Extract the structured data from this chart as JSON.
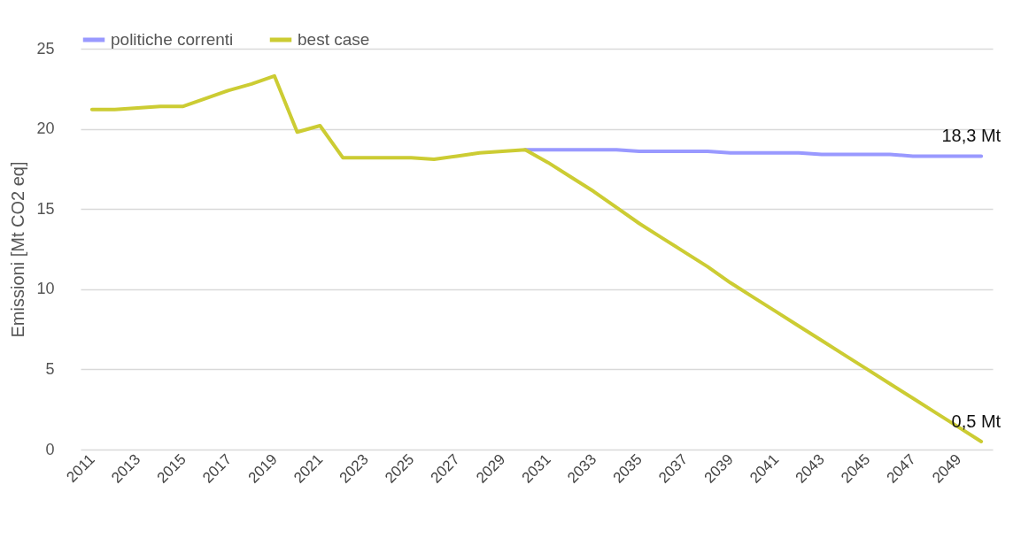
{
  "chart_data": {
    "type": "line",
    "ylabel": "Emissioni [Mt CO2 eq]",
    "categories": [
      "2011",
      null,
      "2013",
      null,
      "2015",
      null,
      "2017",
      null,
      "2019",
      null,
      "2021",
      null,
      "2023",
      null,
      "2025",
      null,
      "2027",
      null,
      "2029",
      null,
      "2031",
      null,
      "2033",
      null,
      "2035",
      null,
      "2037",
      null,
      "2039",
      null,
      "2041",
      null,
      "2043",
      null,
      "2045",
      null,
      "2047",
      null,
      "2049",
      null
    ],
    "series": [
      {
        "name": "politiche correnti",
        "color": "#9999ff",
        "values": [
          null,
          null,
          null,
          null,
          null,
          null,
          null,
          null,
          null,
          null,
          null,
          null,
          null,
          null,
          null,
          null,
          null,
          null,
          null,
          18.7,
          18.7,
          18.7,
          18.7,
          18.7,
          18.6,
          18.6,
          18.6,
          18.6,
          18.5,
          18.5,
          18.5,
          18.5,
          18.4,
          18.4,
          18.4,
          18.4,
          18.3,
          18.3,
          18.3,
          18.3
        ]
      },
      {
        "name": "best case",
        "color": "#cccc33",
        "values": [
          21.2,
          21.2,
          21.3,
          21.4,
          21.4,
          21.9,
          22.4,
          22.8,
          23.3,
          19.8,
          20.2,
          18.2,
          18.2,
          18.2,
          18.2,
          18.1,
          18.3,
          18.5,
          18.6,
          18.7,
          17.9,
          17.0,
          16.1,
          15.1,
          14.1,
          13.2,
          12.3,
          11.4,
          10.4,
          9.5,
          8.6,
          7.7,
          6.8,
          5.9,
          5.0,
          4.1,
          3.2,
          2.3,
          1.4,
          0.5
        ]
      }
    ],
    "ylim": [
      0,
      25
    ],
    "yticks": [
      0,
      5,
      10,
      15,
      20,
      25
    ],
    "grid": "y",
    "legend": "top",
    "marker": "none",
    "line_style": "solid",
    "annotations": [
      {
        "text": "18,3 Mt",
        "y": 18.3
      },
      {
        "text": "0,5 Mt",
        "y": 0.5
      }
    ]
  }
}
